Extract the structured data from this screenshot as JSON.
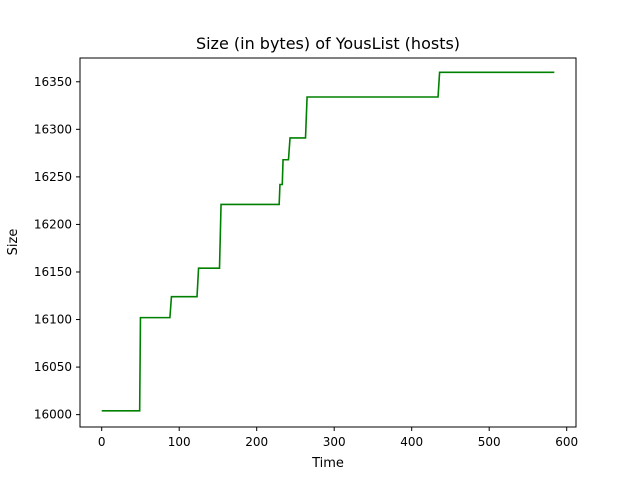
{
  "chart_data": {
    "type": "line",
    "title": "Size (in bytes) of YousList (hosts)",
    "xlabel": "Time",
    "ylabel": "Size",
    "xlim": [
      -28,
      612
    ],
    "ylim": [
      15987,
      16375
    ],
    "xticks": [
      0,
      100,
      200,
      300,
      400,
      500,
      600
    ],
    "yticks": [
      16000,
      16050,
      16100,
      16150,
      16200,
      16250,
      16300,
      16350
    ],
    "grid": false,
    "legend": "none",
    "line_color": "#008000",
    "series": [
      {
        "x": [
          0,
          49,
          50,
          88,
          90,
          123,
          125,
          152,
          154,
          229,
          230,
          233,
          234,
          241,
          243,
          263,
          265,
          434,
          436,
          584
        ],
        "values": [
          16004,
          16004,
          16102,
          16102,
          16124,
          16124,
          16154,
          16154,
          16221,
          16221,
          16242,
          16242,
          16268,
          16268,
          16291,
          16291,
          16334,
          16334,
          16360,
          16360
        ]
      }
    ]
  }
}
